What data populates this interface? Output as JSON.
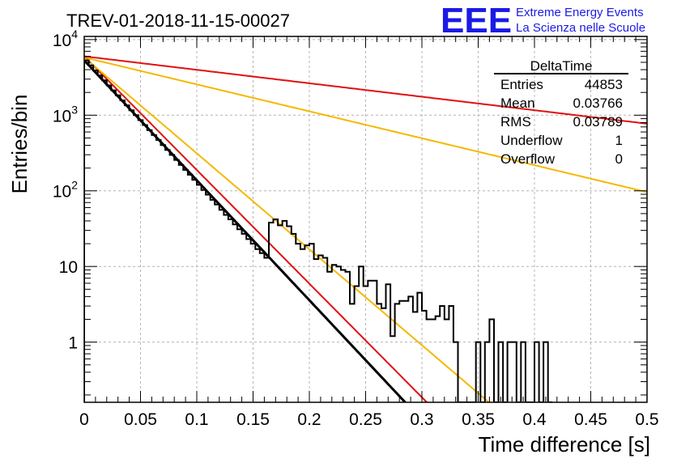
{
  "header": {
    "run_title": "TREV-01-2018-11-15-00027",
    "logo": "EEE",
    "logo_line1": "Extreme Energy Events",
    "logo_line2": "La Scienza nelle Scuole"
  },
  "stats_box": {
    "title": "DeltaTime",
    "rows": [
      {
        "label": "Entries",
        "value": "44853"
      },
      {
        "label": "Mean",
        "value": "0.03766"
      },
      {
        "label": "RMS",
        "value": "0.03789"
      },
      {
        "label": "Underflow",
        "value": "1"
      },
      {
        "label": "Overflow",
        "value": "0"
      }
    ]
  },
  "chart_data": {
    "type": "histogram",
    "xlabel": "Time difference [s]",
    "ylabel": "Entries/bin",
    "xlim": [
      0,
      0.5
    ],
    "ylim": [
      0.16,
      11000
    ],
    "yscale": "log",
    "grid": true,
    "x_ticks": [
      "0",
      "0.05",
      "0.1",
      "0.15",
      "0.2",
      "0.25",
      "0.3",
      "0.35",
      "0.4",
      "0.45",
      "0.5"
    ],
    "y_ticks": [
      {
        "value": 1,
        "base": "1",
        "exp": ""
      },
      {
        "value": 10,
        "base": "10",
        "exp": ""
      },
      {
        "value": 100,
        "base": "10",
        "exp": "2"
      },
      {
        "value": 1000,
        "base": "10",
        "exp": "3"
      },
      {
        "value": 10000,
        "base": "10",
        "exp": "4"
      }
    ],
    "bin_width": 0.004,
    "histogram_counts": [
      5300,
      4550,
      3900,
      3350,
      2890,
      2480,
      2130,
      1830,
      1570,
      1350,
      1160,
      1000,
      860,
      740,
      635,
      545,
      470,
      403,
      347,
      298,
      256,
      220,
      189,
      163,
      140,
      120,
      103,
      89,
      76,
      66,
      56,
      48,
      42,
      36,
      31,
      27,
      23,
      20,
      17,
      15,
      13,
      38,
      42,
      35,
      40,
      34,
      27,
      20,
      17,
      19,
      20,
      12.5,
      14,
      13,
      8.5,
      10.5,
      10,
      9,
      8.5,
      3.2,
      5.5,
      10,
      5.5,
      6.5,
      6.5,
      3.2,
      2.8,
      5.8,
      1.2,
      3.2,
      3.5,
      3.5,
      4,
      2.5,
      4.5,
      2.6,
      2,
      2,
      2.2,
      3,
      2,
      3,
      1,
      0.1,
      0.1,
      0.1,
      0.1,
      1,
      0.1,
      1,
      2,
      0.1,
      1,
      0.1,
      1,
      1,
      0.1,
      1,
      0.1,
      0.1,
      1,
      0.1,
      1,
      0.1
    ],
    "series": [
      {
        "type": "fit",
        "color": "#000000",
        "amplitude": 5300,
        "slope": 36.5
      },
      {
        "type": "bound",
        "color": "#e01010",
        "amplitude": 6000,
        "slope": 4.1
      },
      {
        "type": "bound",
        "color": "#f5b800",
        "amplitude": 5800,
        "slope": 8.2
      },
      {
        "type": "bound",
        "color": "#e01010",
        "amplitude": 6000,
        "slope": 34.6
      },
      {
        "type": "bound",
        "color": "#f5b800",
        "amplitude": 5800,
        "slope": 29.2
      }
    ]
  }
}
